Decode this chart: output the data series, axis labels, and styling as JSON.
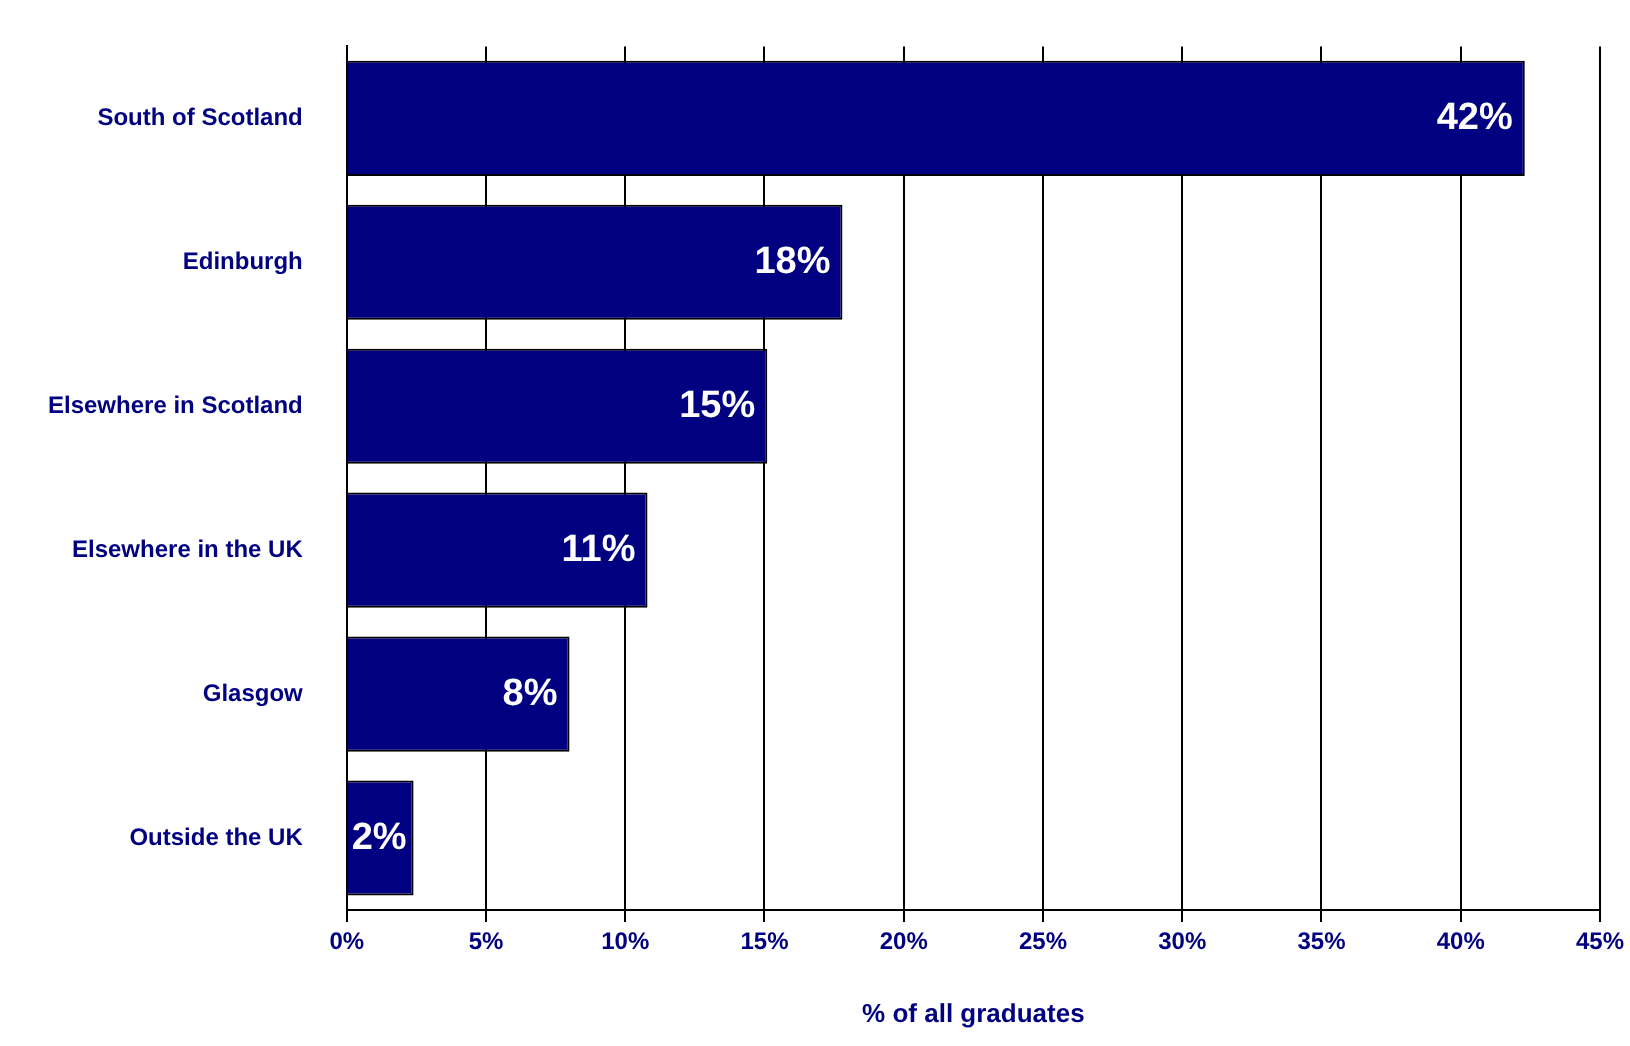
{
  "chart_data": {
    "type": "bar",
    "orientation": "horizontal",
    "xlabel": "% of all graduates",
    "categories": [
      "South of Scotland",
      "Edinburgh",
      "Elsewhere in Scotland",
      "Elsewhere in the UK",
      "Glasgow",
      "Outside the UK"
    ],
    "values": [
      42.3,
      17.8,
      15.1,
      10.8,
      8.0,
      2.4
    ],
    "value_labels": [
      "42%",
      "18%",
      "15%",
      "11%",
      "8%",
      "2%"
    ],
    "color": "#000080",
    "xlim": [
      0,
      45
    ],
    "xticks": [
      {
        "value": 0,
        "label": "0%"
      },
      {
        "value": 5,
        "label": "5%"
      },
      {
        "value": 10,
        "label": "10%"
      },
      {
        "value": 15,
        "label": "15%"
      },
      {
        "value": 20,
        "label": "20%"
      },
      {
        "value": 25,
        "label": "25%"
      },
      {
        "value": 30,
        "label": "30%"
      },
      {
        "value": 35,
        "label": "35%"
      },
      {
        "value": 40,
        "label": "40%"
      },
      {
        "value": 45,
        "label": "45%"
      }
    ],
    "grid": "x",
    "legend": false
  }
}
